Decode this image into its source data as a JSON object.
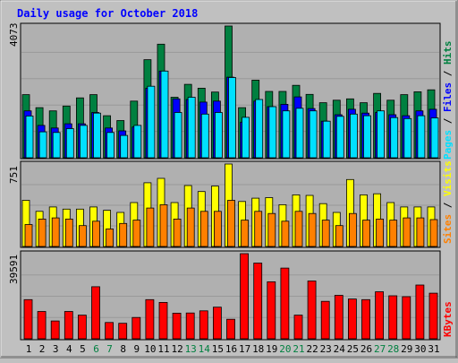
{
  "chart_data": {
    "type": "bar",
    "title": "Daily usage for October 2018",
    "categories": [
      "1",
      "2",
      "3",
      "4",
      "5",
      "6",
      "7",
      "8",
      "9",
      "10",
      "11",
      "12",
      "13",
      "14",
      "15",
      "16",
      "17",
      "18",
      "19",
      "20",
      "21",
      "22",
      "23",
      "24",
      "25",
      "26",
      "27",
      "28",
      "29",
      "30",
      "31"
    ],
    "weekend_days": [
      "6",
      "7",
      "13",
      "14",
      "20",
      "21",
      "27",
      "28"
    ],
    "panels": [
      {
        "id": "hits",
        "ymax_label": "4073",
        "ymax": 4073,
        "legend": [
          "Pages",
          "Files",
          "Hits"
        ],
        "series": [
          {
            "name": "Hits",
            "color": "#008040",
            "values": [
              1950,
              1550,
              1450,
              1600,
              1850,
              1950,
              1300,
              1150,
              1750,
              3030,
              3510,
              1870,
              2270,
              2150,
              2030,
              4073,
              1550,
              2400,
              2050,
              2050,
              2240,
              1960,
              1700,
              1780,
              1820,
              1700,
              1990,
              1780,
              1950,
              2040,
              2100
            ]
          },
          {
            "name": "Files",
            "color": "#0000ff",
            "values": [
              1450,
              1000,
              920,
              1050,
              1050,
              1400,
              920,
              830,
              950,
              2150,
              2680,
              1820,
              1800,
              1720,
              1750,
              2490,
              1100,
              1750,
              1580,
              1650,
              1880,
              1520,
              1130,
              1330,
              1500,
              1380,
              1400,
              1330,
              1300,
              1450,
              1500
            ]
          },
          {
            "name": "Pages",
            "color": "#00e0ff",
            "values": [
              1290,
              800,
              780,
              900,
              1000,
              1380,
              780,
              690,
              1000,
              2210,
              2680,
              1400,
              1870,
              1350,
              1400,
              2480,
              1250,
              1800,
              1580,
              1450,
              1530,
              1450,
              1130,
              1280,
              1350,
              1300,
              1450,
              1240,
              1210,
              1300,
              1230
            ]
          }
        ]
      },
      {
        "id": "visits",
        "ymax_label": "751",
        "ymax": 751,
        "legend": [
          "Sites",
          "Visits"
        ],
        "series": [
          {
            "name": "Visits",
            "color": "#ffff00",
            "values": [
              420,
              320,
              360,
              340,
              340,
              360,
              330,
              310,
              400,
              580,
              620,
              400,
              555,
              500,
              550,
              751,
              410,
              440,
              445,
              380,
              470,
              465,
              390,
              310,
              610,
              470,
              480,
              400,
              360,
              360,
              360
            ]
          },
          {
            "name": "Sites",
            "color": "#ff8000",
            "values": [
              200,
              250,
              260,
              250,
              190,
              230,
              160,
              210,
              240,
              350,
              380,
              250,
              350,
              320,
              320,
              420,
              240,
              320,
              300,
              230,
              320,
              300,
              240,
              190,
              300,
              240,
              250,
              240,
              260,
              260,
              245
            ]
          }
        ]
      },
      {
        "id": "kbytes",
        "ymax_label": "39591",
        "ymax": 39591,
        "legend": [
          "KBytes"
        ],
        "series": [
          {
            "name": "KBytes",
            "color": "#ff0000",
            "values": [
              18200,
              12700,
              8300,
              12700,
              11000,
              24200,
              7600,
              7200,
              9900,
              18200,
              16900,
              11900,
              12000,
              13000,
              14700,
              9100,
              39591,
              35200,
              26500,
              32900,
              11000,
              26900,
              17400,
              20200,
              18500,
              18200,
              21900,
              20000,
              19600,
              25000,
              21200
            ]
          }
        ]
      }
    ]
  }
}
